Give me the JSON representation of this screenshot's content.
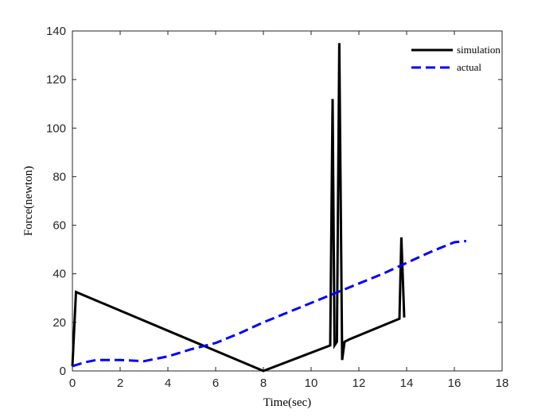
{
  "chart_data": {
    "type": "line",
    "title": "",
    "xlabel": "Time(sec)",
    "ylabel": "Force(newton)",
    "xlim": [
      0,
      18
    ],
    "ylim": [
      0,
      140
    ],
    "xticks": [
      0,
      2,
      4,
      6,
      8,
      10,
      12,
      14,
      16,
      18
    ],
    "yticks": [
      0,
      20,
      40,
      60,
      80,
      100,
      120,
      140
    ],
    "grid": false,
    "legend_position": "top-right",
    "series": [
      {
        "name": "simulation",
        "color": "#000000",
        "style": "solid",
        "points": [
          [
            0.0,
            2
          ],
          [
            0.15,
            32.5
          ],
          [
            8.0,
            0
          ],
          [
            10.8,
            10.5
          ],
          [
            10.9,
            112
          ],
          [
            10.98,
            10.5
          ],
          [
            11.08,
            12
          ],
          [
            11.18,
            135
          ],
          [
            11.3,
            4.5
          ],
          [
            11.4,
            12
          ],
          [
            11.6,
            13
          ],
          [
            13.7,
            21.5
          ],
          [
            13.78,
            55
          ],
          [
            13.9,
            22
          ]
        ]
      },
      {
        "name": "actual",
        "color": "#0000ff",
        "style": "dashed",
        "points": [
          [
            0.0,
            2
          ],
          [
            0.5,
            3.5
          ],
          [
            1.0,
            4.5
          ],
          [
            2.0,
            4.5
          ],
          [
            3.0,
            4
          ],
          [
            4.0,
            6
          ],
          [
            5.0,
            9
          ],
          [
            6.0,
            11.5
          ],
          [
            7.0,
            15.5
          ],
          [
            8.0,
            20
          ],
          [
            9.0,
            24
          ],
          [
            10.0,
            28
          ],
          [
            11.0,
            32
          ],
          [
            12.0,
            36
          ],
          [
            13.0,
            40
          ],
          [
            14.0,
            44.5
          ],
          [
            15.0,
            49
          ],
          [
            16.0,
            53
          ],
          [
            16.5,
            53.5
          ]
        ]
      }
    ]
  }
}
